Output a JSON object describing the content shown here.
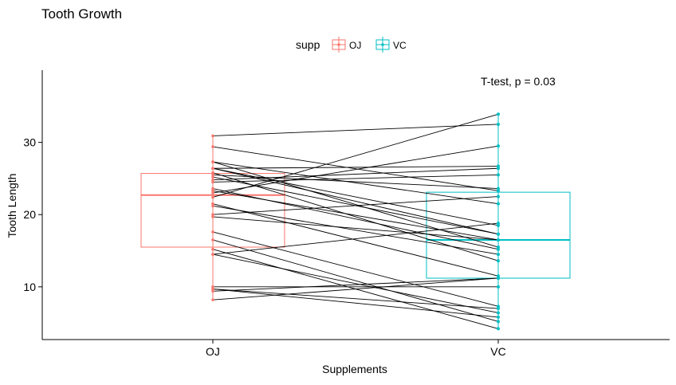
{
  "chart_data": {
    "type": "boxplot-paired",
    "title": "Tooth Growth",
    "xlabel": "Supplements",
    "ylabel": "Tooth Length",
    "categories": [
      "OJ",
      "VC"
    ],
    "ylim": [
      2.7,
      40
    ],
    "yticks": [
      10,
      20,
      30
    ],
    "grid": false,
    "legend": {
      "title": "supp",
      "placement": "top",
      "entries": [
        {
          "name": "OJ",
          "color": "#F8766D"
        },
        {
          "name": "VC",
          "color": "#00BFC4"
        }
      ]
    },
    "annotation": "T-test, p = 0.03",
    "boxes": [
      {
        "group": "OJ",
        "q1": 15.5,
        "median": 22.7,
        "q3": 25.7,
        "color": "#F8766D"
      },
      {
        "group": "VC",
        "q1": 11.2,
        "median": 16.5,
        "q3": 23.1,
        "color": "#00BFC4"
      }
    ],
    "pairs": [
      [
        15.2,
        4.2
      ],
      [
        21.5,
        11.5
      ],
      [
        17.6,
        7.3
      ],
      [
        9.7,
        5.8
      ],
      [
        14.5,
        6.4
      ],
      [
        10.0,
        10.0
      ],
      [
        8.2,
        11.2
      ],
      [
        9.4,
        11.2
      ],
      [
        16.5,
        5.2
      ],
      [
        9.7,
        7.0
      ],
      [
        19.7,
        16.5
      ],
      [
        23.3,
        16.5
      ],
      [
        23.6,
        15.2
      ],
      [
        26.4,
        17.3
      ],
      [
        20.0,
        22.5
      ],
      [
        25.2,
        17.3
      ],
      [
        25.8,
        13.6
      ],
      [
        21.2,
        14.5
      ],
      [
        14.5,
        18.8
      ],
      [
        27.3,
        15.5
      ],
      [
        25.5,
        23.6
      ],
      [
        26.4,
        18.5
      ],
      [
        22.4,
        33.9
      ],
      [
        24.5,
        25.5
      ],
      [
        24.8,
        26.4
      ],
      [
        30.9,
        32.5
      ],
      [
        26.4,
        26.7
      ],
      [
        27.3,
        21.5
      ],
      [
        29.4,
        23.3
      ],
      [
        23.0,
        29.5
      ]
    ]
  }
}
